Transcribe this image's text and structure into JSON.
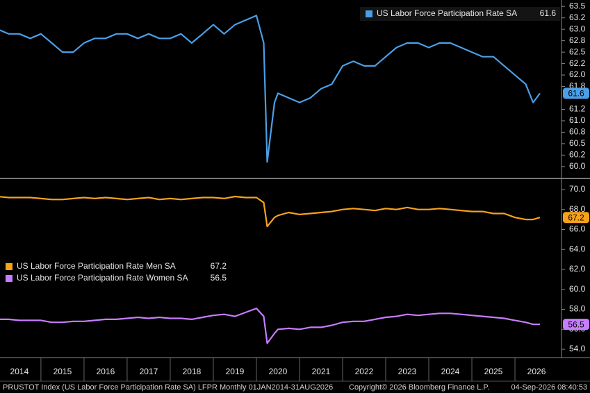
{
  "chart_data": [
    {
      "type": "line",
      "legend": "upper-right",
      "x": [
        2014,
        2014.25,
        2014.5,
        2014.75,
        2015,
        2015.25,
        2015.5,
        2015.75,
        2016,
        2016.25,
        2016.5,
        2016.75,
        2017,
        2017.25,
        2017.5,
        2017.75,
        2018,
        2018.25,
        2018.5,
        2018.75,
        2019,
        2019.25,
        2019.5,
        2019.75,
        2020,
        2020.17,
        2020.25,
        2020.42,
        2020.5,
        2020.75,
        2021,
        2021.25,
        2021.5,
        2021.75,
        2022,
        2022.25,
        2022.5,
        2022.75,
        2023,
        2023.25,
        2023.5,
        2023.75,
        2024,
        2024.25,
        2024.5,
        2024.75,
        2025,
        2025.25,
        2025.5,
        2025.75,
        2026,
        2026.25,
        2026.42,
        2026.58
      ],
      "xlim": [
        2014.05,
        2027.08
      ],
      "ylim": [
        59.77,
        63.64
      ],
      "yticks": [
        {
          "value": 60,
          "label": "60.0"
        },
        {
          "value": 60.25,
          "label": "60.2"
        },
        {
          "value": 60.5,
          "label": "60.5"
        },
        {
          "value": 60.75,
          "label": "60.8"
        },
        {
          "value": 61,
          "label": "61.0"
        },
        {
          "value": 61.25,
          "label": "61.2"
        },
        {
          "value": 61.75,
          "label": "61.8"
        },
        {
          "value": 62,
          "label": "62.0"
        },
        {
          "value": 62.25,
          "label": "62.2"
        },
        {
          "value": 62.5,
          "label": "62.5"
        },
        {
          "value": 62.75,
          "label": "62.8"
        },
        {
          "value": 63,
          "label": "63.0"
        },
        {
          "value": 63.25,
          "label": "63.2"
        },
        {
          "value": 63.5,
          "label": "63.5"
        }
      ],
      "series": [
        {
          "name": "US Labor Force Participation Rate SA",
          "color": "#4a9fe8",
          "values": [
            63.0,
            62.9,
            62.9,
            62.8,
            62.9,
            62.7,
            62.5,
            62.5,
            62.7,
            62.8,
            62.8,
            62.9,
            62.9,
            62.8,
            62.9,
            62.8,
            62.8,
            62.9,
            62.7,
            62.9,
            63.1,
            62.9,
            63.1,
            63.2,
            63.3,
            62.7,
            60.1,
            61.4,
            61.6,
            61.5,
            61.4,
            61.5,
            61.7,
            61.8,
            62.2,
            62.3,
            62.2,
            62.2,
            62.4,
            62.6,
            62.7,
            62.7,
            62.6,
            62.7,
            62.7,
            62.6,
            62.5,
            62.4,
            62.4,
            62.2,
            62.0,
            61.8,
            61.4,
            61.6
          ]
        }
      ]
    },
    {
      "type": "line",
      "legend": "left",
      "x": [
        2014,
        2014.25,
        2014.5,
        2014.75,
        2015,
        2015.25,
        2015.5,
        2015.75,
        2016,
        2016.25,
        2016.5,
        2016.75,
        2017,
        2017.25,
        2017.5,
        2017.75,
        2018,
        2018.25,
        2018.5,
        2018.75,
        2019,
        2019.25,
        2019.5,
        2019.75,
        2020,
        2020.17,
        2020.25,
        2020.42,
        2020.5,
        2020.75,
        2021,
        2021.25,
        2021.5,
        2021.75,
        2022,
        2022.25,
        2022.5,
        2022.75,
        2023,
        2023.25,
        2023.5,
        2023.75,
        2024,
        2024.25,
        2024.5,
        2024.75,
        2025,
        2025.25,
        2025.5,
        2025.75,
        2026,
        2026.25,
        2026.42,
        2026.58
      ],
      "xlim": [
        2014.05,
        2027.08
      ],
      "xticks": [
        {
          "value": 2014.5,
          "label": "2014"
        },
        {
          "value": 2015.5,
          "label": "2015"
        },
        {
          "value": 2016.5,
          "label": "2016"
        },
        {
          "value": 2017.5,
          "label": "2017"
        },
        {
          "value": 2018.5,
          "label": "2018"
        },
        {
          "value": 2019.5,
          "label": "2019"
        },
        {
          "value": 2020.5,
          "label": "2020"
        },
        {
          "value": 2021.5,
          "label": "2021"
        },
        {
          "value": 2022.5,
          "label": "2022"
        },
        {
          "value": 2023.5,
          "label": "2023"
        },
        {
          "value": 2024.5,
          "label": "2024"
        },
        {
          "value": 2025.5,
          "label": "2025"
        },
        {
          "value": 2026.5,
          "label": "2026"
        }
      ],
      "ylim": [
        53.17,
        71.04
      ],
      "yticks": [
        {
          "value": 54,
          "label": "54.0"
        },
        {
          "value": 56,
          "label": "56.0"
        },
        {
          "value": 58,
          "label": "58.0"
        },
        {
          "value": 60,
          "label": "60.0"
        },
        {
          "value": 62,
          "label": "62.0"
        },
        {
          "value": 64,
          "label": "64.0"
        },
        {
          "value": 66,
          "label": "66.0"
        },
        {
          "value": 68,
          "label": "68.0"
        },
        {
          "value": 70,
          "label": "70.0"
        }
      ],
      "series": [
        {
          "name": "US Labor Force Participation Rate Men SA",
          "color": "#f7a21c",
          "values": [
            69.3,
            69.2,
            69.2,
            69.2,
            69.1,
            69.0,
            69.0,
            69.1,
            69.2,
            69.1,
            69.2,
            69.1,
            69.0,
            69.1,
            69.2,
            69.0,
            69.1,
            69.0,
            69.1,
            69.2,
            69.2,
            69.1,
            69.3,
            69.2,
            69.2,
            68.7,
            66.3,
            67.2,
            67.4,
            67.7,
            67.5,
            67.6,
            67.7,
            67.8,
            68.0,
            68.1,
            68.0,
            67.9,
            68.1,
            68.0,
            68.2,
            68.0,
            68.0,
            68.1,
            68.0,
            67.9,
            67.8,
            67.8,
            67.6,
            67.6,
            67.2,
            67.0,
            67.0,
            67.2
          ]
        },
        {
          "name": "US Labor Force Participation Rate Women SA",
          "color": "#c77dff",
          "values": [
            57.0,
            57.0,
            56.9,
            56.9,
            56.9,
            56.7,
            56.7,
            56.8,
            56.8,
            56.9,
            57.0,
            57.0,
            57.1,
            57.2,
            57.1,
            57.2,
            57.1,
            57.1,
            57.0,
            57.2,
            57.4,
            57.5,
            57.3,
            57.7,
            58.1,
            57.3,
            54.6,
            55.6,
            56.0,
            56.1,
            56.0,
            56.2,
            56.2,
            56.4,
            56.7,
            56.8,
            56.8,
            57.0,
            57.2,
            57.3,
            57.5,
            57.4,
            57.5,
            57.6,
            57.6,
            57.5,
            57.4,
            57.3,
            57.2,
            57.1,
            56.9,
            56.7,
            56.5,
            56.5
          ]
        }
      ]
    }
  ],
  "footer": {
    "source": "PRUSTOT Index (US Labor Force Participation Rate SA) LFPR Monthly 01JAN2014-31AUG2026",
    "copyright": "Copyright© 2026 Bloomberg Finance L.P.",
    "timestamp": "04-Sep-2026 08:40:53"
  }
}
